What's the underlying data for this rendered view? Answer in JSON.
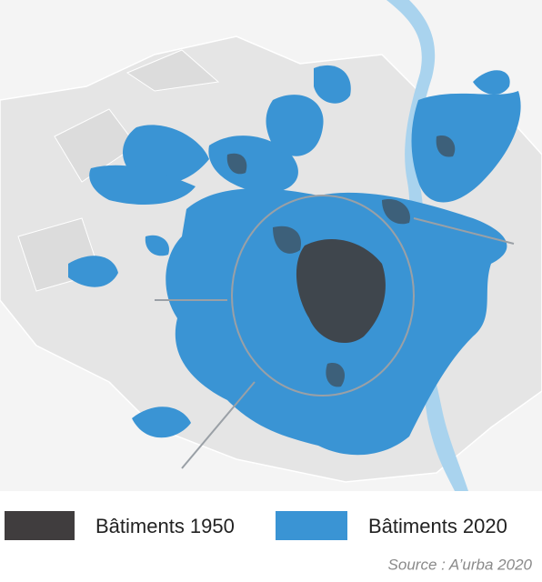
{
  "legend": [
    {
      "label": "Bâtiments 1950",
      "color": "#403d3e"
    },
    {
      "label": "Bâtiments 2020",
      "color": "#3a94d4"
    }
  ],
  "source": "Source : A’urba 2020"
}
